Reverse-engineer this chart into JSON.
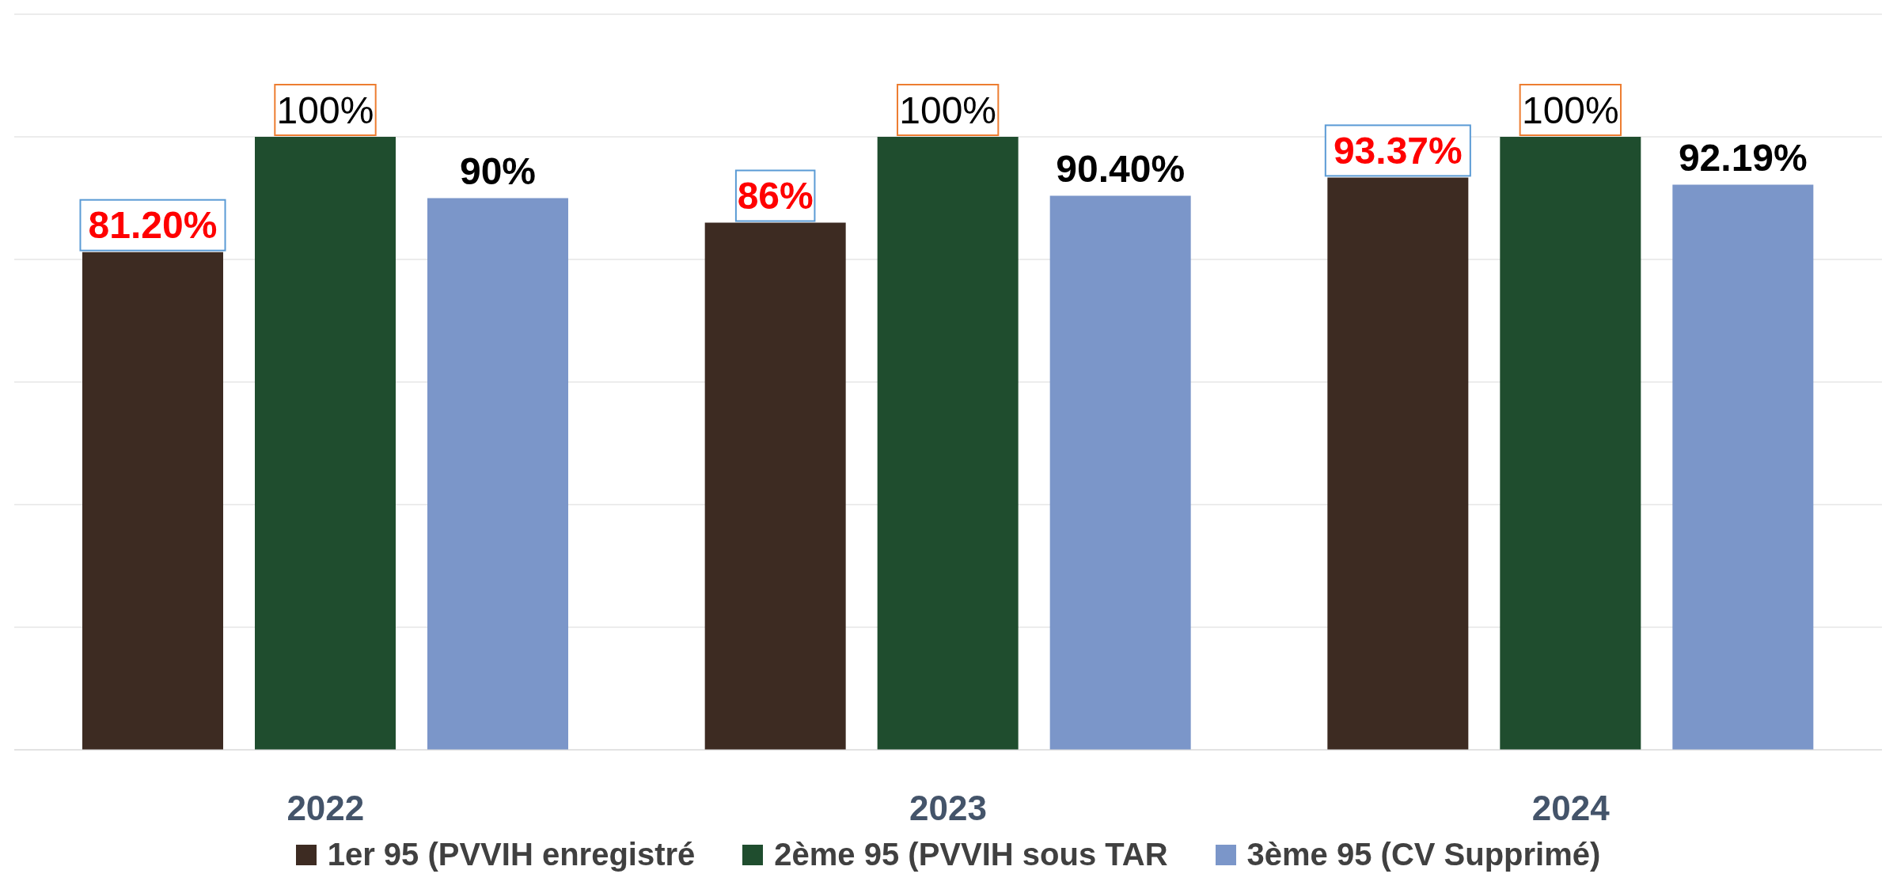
{
  "chart_data": {
    "type": "bar",
    "categories": [
      "2022",
      "2023",
      "2024"
    ],
    "series": [
      {
        "name": "1er 95 (PVVIH enregistré",
        "color": "#3d2b22",
        "values": [
          81.2,
          86,
          93.37
        ],
        "value_labels": [
          "81.20%",
          "86%",
          "93.37%"
        ]
      },
      {
        "name": "2ème 95 (PVVIH sous TAR",
        "color": "#1f4d2e",
        "values": [
          100,
          100,
          100
        ],
        "value_labels": [
          "100%",
          "100%",
          "100%"
        ]
      },
      {
        "name": "3ème 95 (CV Supprimé)",
        "color": "#7b96c9",
        "values": [
          90,
          90.4,
          92.19
        ],
        "value_labels": [
          "90%",
          "90.40%",
          "92.19%"
        ]
      }
    ],
    "ylim": [
      0,
      120
    ],
    "yticks": [
      0,
      20,
      40,
      60,
      80,
      100,
      120
    ],
    "grid": "y",
    "tick_labels": "x",
    "legend": "bottom"
  }
}
